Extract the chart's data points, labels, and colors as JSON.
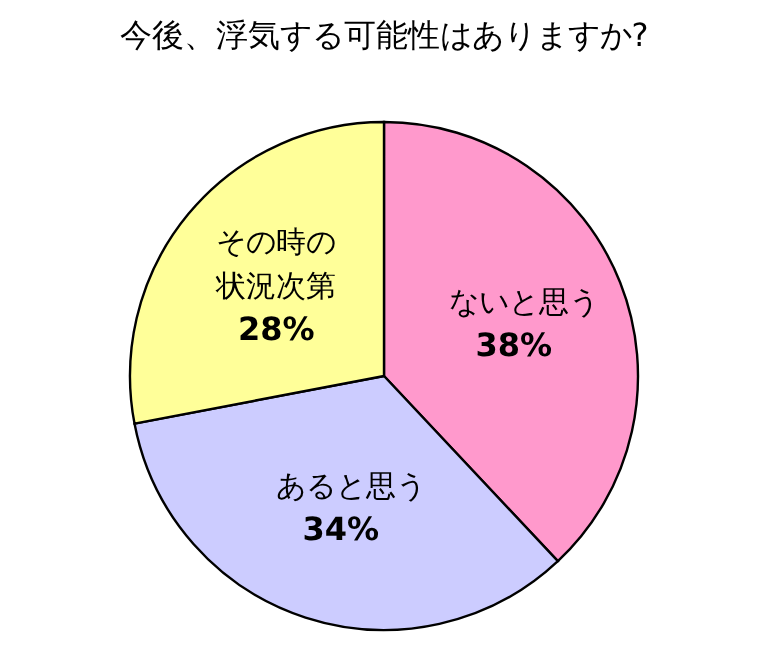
{
  "chart_data": {
    "type": "pie",
    "title": "今後、浮気する可能性はありますか?",
    "categories": [
      "ないと思う",
      "あると思う",
      "その時の状況次第"
    ],
    "values": [
      38,
      34,
      28
    ],
    "colors": [
      "#ff99cc",
      "#ccccff",
      "#ffff99"
    ],
    "value_labels": [
      "38%",
      "34%",
      "28%"
    ]
  }
}
